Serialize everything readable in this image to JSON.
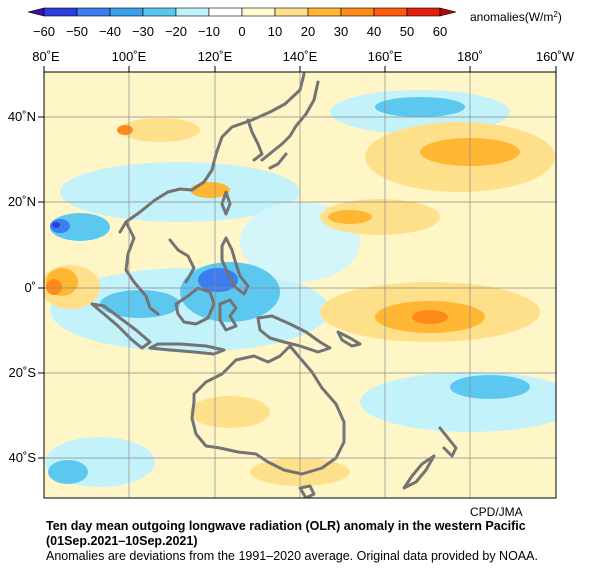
{
  "colorbar": {
    "unit_label": "anomalies(W/m",
    "unit_sup": "2",
    "unit_close": ")",
    "ticks": [
      "−60",
      "−50",
      "−40",
      "−30",
      "−20",
      "−10",
      "0",
      "10",
      "20",
      "30",
      "40",
      "50",
      "60"
    ],
    "colors": [
      "#2a3ee0",
      "#3d7df0",
      "#3aa0ee",
      "#58c8f0",
      "#bff3fb",
      "#ffffff",
      "#fffad0",
      "#ffe08a",
      "#ffb733",
      "#ff8a1a",
      "#ff5a10",
      "#e0200a"
    ]
  },
  "map": {
    "lon_labels": [
      "80˚E",
      "100˚E",
      "120˚E",
      "140˚E",
      "160˚E",
      "180˚",
      "160˚W"
    ],
    "lat_labels": [
      "40˚N",
      "20˚N",
      "0˚",
      "20˚S",
      "40˚S"
    ]
  },
  "credit": "CPD/JMA",
  "caption": {
    "title": "Ten day mean outgoing longwave radiation (OLR) anomaly in the western Pacific",
    "period": "(01Sep.2021–10Sep.2021)",
    "note": "Anomalies are deviations from the 1991–2020 average. Original data provided by NOAA."
  }
}
